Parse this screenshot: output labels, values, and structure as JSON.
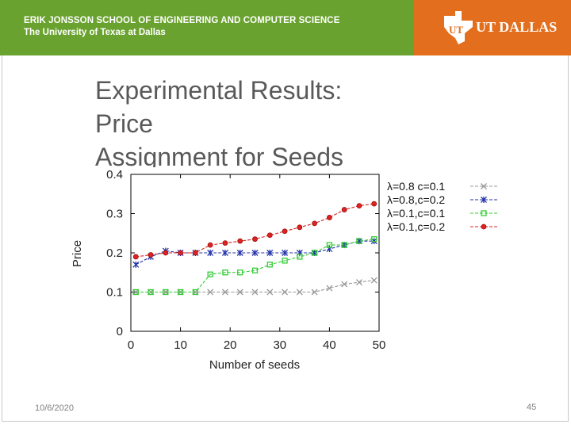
{
  "header": {
    "school_line": "ERIK JONSSON SCHOOL OF ENGINEERING AND COMPUTER SCIENCE",
    "university_line": "The University of Texas at Dallas",
    "logo_text": "UT DALLAS",
    "green_color": "#6aa22f",
    "orange_color": "#e36f1e"
  },
  "slide": {
    "title_line1": "Experimental Results:",
    "title_line2": "Price",
    "title_line3": "Assignment for Seeds",
    "date": "10/6/2020",
    "page_number": "45"
  },
  "chart_data": {
    "type": "line",
    "xlabel": "Number of seeds",
    "ylabel": "Price",
    "xlim": [
      0,
      50
    ],
    "ylim": [
      0,
      0.4
    ],
    "xticks": [
      "0",
      "10",
      "20",
      "30",
      "40",
      "50"
    ],
    "yticks": [
      "0",
      "0.1",
      "0.2",
      "0.3",
      "0.4"
    ],
    "legend_position": "top-right",
    "x": [
      1,
      4,
      7,
      10,
      13,
      16,
      19,
      22,
      25,
      28,
      31,
      34,
      37,
      40,
      43,
      46,
      49
    ],
    "series": [
      {
        "name": "λ=0.8 c=0.1",
        "color": "#999999",
        "marker": "x",
        "values": [
          0.1,
          0.1,
          0.1,
          0.1,
          0.1,
          0.1,
          0.1,
          0.1,
          0.1,
          0.1,
          0.1,
          0.1,
          0.1,
          0.11,
          0.12,
          0.125,
          0.13
        ]
      },
      {
        "name": "λ=0.8,c=0.2",
        "color": "#2233aa",
        "marker": "star",
        "values": [
          0.17,
          0.19,
          0.205,
          0.2,
          0.2,
          0.2,
          0.2,
          0.2,
          0.2,
          0.2,
          0.2,
          0.2,
          0.2,
          0.21,
          0.22,
          0.23,
          0.23
        ]
      },
      {
        "name": "λ=0.1,c=0.1",
        "color": "#33cc33",
        "marker": "square",
        "values": [
          0.1,
          0.1,
          0.1,
          0.1,
          0.1,
          0.145,
          0.15,
          0.15,
          0.155,
          0.17,
          0.18,
          0.19,
          0.2,
          0.22,
          0.22,
          0.23,
          0.235
        ]
      },
      {
        "name": "λ=0.1,c=0.2",
        "color": "#dd2222",
        "marker": "circle",
        "values": [
          0.19,
          0.195,
          0.2,
          0.2,
          0.2,
          0.22,
          0.225,
          0.23,
          0.235,
          0.245,
          0.255,
          0.265,
          0.275,
          0.29,
          0.31,
          0.32,
          0.325
        ]
      }
    ]
  }
}
